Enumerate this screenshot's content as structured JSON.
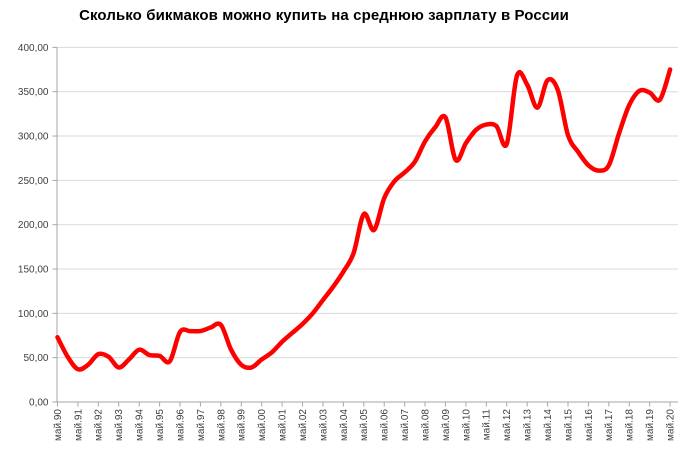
{
  "chart_data": {
    "type": "line",
    "title": "Сколько бикмаков можно купить на среднюю зарплату в России",
    "xlabel": "",
    "ylabel": "",
    "ylim": [
      0,
      400
    ],
    "xlim": [
      1990,
      2020
    ],
    "grid": "horizontal",
    "legend": "none",
    "y_ticks": [
      0,
      50,
      100,
      150,
      200,
      250,
      300,
      350,
      400
    ],
    "y_tick_labels": [
      "0,00",
      "50,00",
      "100,00",
      "150,00",
      "200,00",
      "250,00",
      "300,00",
      "350,00",
      "400,00"
    ],
    "x_tick_labels": [
      "май.90",
      "май.91",
      "май.92",
      "май.93",
      "май.94",
      "май.95",
      "май.96",
      "май.97",
      "май.98",
      "май.99",
      "май.00",
      "май.01",
      "май.02",
      "май.03",
      "май.04",
      "май.05",
      "май.06",
      "май.07",
      "май.08",
      "май.09",
      "май.10",
      "май.11",
      "май.12",
      "май.13",
      "май.14",
      "май.15",
      "май.16",
      "май.17",
      "май.18",
      "май.19",
      "май.20"
    ],
    "series": [
      {
        "color": "#ff0000",
        "line_width": 4.5,
        "smoothed": true,
        "x": [
          1990,
          1990.5,
          1991,
          1991.5,
          1992,
          1992.5,
          1993,
          1993.5,
          1994,
          1994.5,
          1995,
          1995.5,
          1996,
          1996.5,
          1997,
          1997.5,
          1998,
          1998.5,
          1999,
          1999.5,
          2000,
          2000.5,
          2001,
          2001.5,
          2002,
          2002.5,
          2003,
          2003.5,
          2004,
          2004.5,
          2005,
          2005.5,
          2006,
          2006.5,
          2007,
          2007.5,
          2008,
          2008.5,
          2009,
          2009.5,
          2010,
          2010.5,
          2011,
          2011.5,
          2012,
          2012.5,
          2013,
          2013.5,
          2014,
          2014.5,
          2015,
          2015.5,
          2016,
          2016.5,
          2017,
          2017.5,
          2018,
          2018.5,
          2019,
          2019.5,
          2020
        ],
        "values": [
          73,
          51,
          37,
          42,
          54,
          51,
          39,
          48,
          59,
          53,
          52,
          46,
          79,
          80,
          80,
          84,
          87,
          59,
          42,
          39,
          48,
          56,
          68,
          78,
          88,
          100,
          115,
          130,
          147,
          168,
          212,
          194,
          230,
          249,
          259,
          271,
          294,
          310,
          321,
          273,
          292,
          307,
          313,
          311,
          291,
          368,
          358,
          332,
          363,
          352,
          301,
          282,
          267,
          261,
          267,
          303,
          335,
          351,
          349,
          341,
          375
        ]
      }
    ]
  },
  "colors": {
    "line": "#ff0000",
    "gridline": "#d9d9d9",
    "axis": "#a6a6a6",
    "tick_label": "#404040",
    "title": "#000000",
    "background": "#ffffff"
  }
}
